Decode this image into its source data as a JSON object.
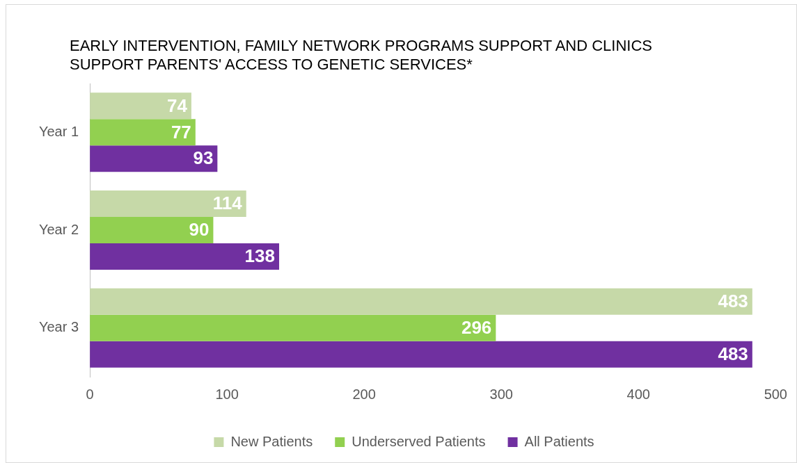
{
  "chart_data": {
    "type": "bar",
    "orientation": "horizontal",
    "title": "EARLY INTERVENTION, FAMILY NETWORK PROGRAMS SUPPORT AND CLINICS SUPPORT PARENTS' ACCESS TO GENETIC SERVICES*",
    "categories": [
      "Year 1",
      "Year 2",
      "Year 3"
    ],
    "series": [
      {
        "name": "New Patients",
        "color": "#c6d9a8",
        "values": [
          74,
          114,
          483
        ]
      },
      {
        "name": "Underserved Patients",
        "color": "#92d050",
        "values": [
          77,
          90,
          296
        ]
      },
      {
        "name": "All Patients",
        "color": "#7030a0",
        "values": [
          93,
          138,
          483
        ]
      }
    ],
    "xlim": [
      0,
      500
    ],
    "xticks": [
      0,
      100,
      200,
      300,
      400,
      500
    ],
    "grid": false,
    "legend": "bottom",
    "data_labels": true
  }
}
